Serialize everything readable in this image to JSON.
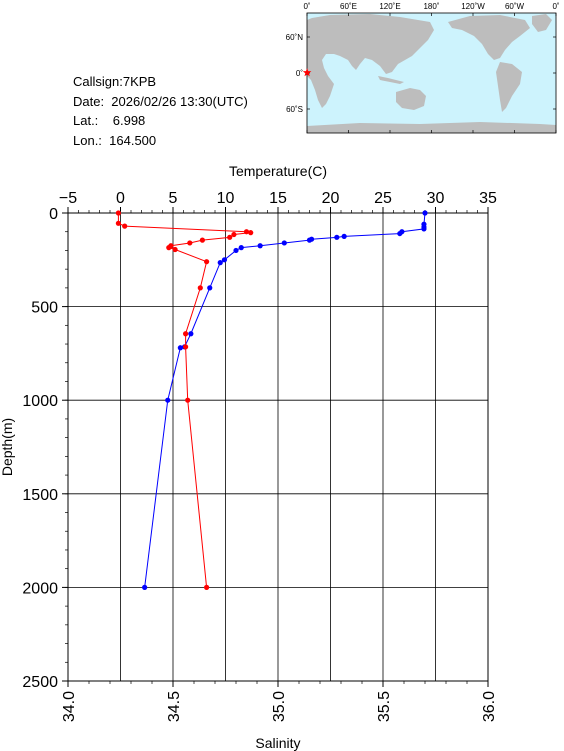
{
  "info": {
    "callsign": "Callsign:7KPB",
    "date": "Date:  2026/02/26 13:30(UTC)",
    "lat": "Lat.:    6.998",
    "lon": "Lon.:  164.500"
  },
  "map": {
    "top_lon_labels": [
      "0˚",
      "60˚E",
      "120˚E",
      "180˚",
      "120˚W",
      "60˚W",
      "0˚"
    ],
    "lat_labels": [
      "60˚N",
      "0˚",
      "60˚S"
    ],
    "ocean_color": "#cdf3fd",
    "land_color": "#bdbdbd",
    "marker_color": "#ff0000",
    "marker": "star-icon"
  },
  "chart_data": {
    "type": "line",
    "ylabel": "Depth(m)",
    "y_ticks": [
      "0",
      "500",
      "1000",
      "1500",
      "2000",
      "2500"
    ],
    "ylim": [
      2500,
      0
    ],
    "grid": true,
    "top_axis": {
      "label": "Temperature(C)",
      "range": [
        -5,
        35
      ],
      "ticks": [
        "−5",
        "0",
        "5",
        "10",
        "15",
        "20",
        "25",
        "30",
        "35"
      ]
    },
    "bottom_axis": {
      "label": "Salinity",
      "range": [
        34.0,
        36.0
      ],
      "ticks": [
        "34.0",
        "34.5",
        "35.0",
        "35.5",
        "36.0"
      ]
    },
    "series": [
      {
        "axis": "top",
        "color": "#0000ff",
        "points": [
          {
            "x": 29.0,
            "y": 0
          },
          {
            "x": 28.9,
            "y": 60
          },
          {
            "x": 28.9,
            "y": 75
          },
          {
            "x": 28.9,
            "y": 85
          },
          {
            "x": 26.8,
            "y": 100
          },
          {
            "x": 26.6,
            "y": 110
          },
          {
            "x": 21.3,
            "y": 125
          },
          {
            "x": 20.6,
            "y": 130
          },
          {
            "x": 18.2,
            "y": 140
          },
          {
            "x": 18.0,
            "y": 145
          },
          {
            "x": 15.6,
            "y": 160
          },
          {
            "x": 13.3,
            "y": 175
          },
          {
            "x": 11.5,
            "y": 185
          },
          {
            "x": 11.0,
            "y": 200
          },
          {
            "x": 9.9,
            "y": 250
          },
          {
            "x": 9.5,
            "y": 265
          },
          {
            "x": 8.5,
            "y": 400
          },
          {
            "x": 6.7,
            "y": 645
          },
          {
            "x": 6.1,
            "y": 715
          },
          {
            "x": 5.7,
            "y": 720
          },
          {
            "x": 4.5,
            "y": 1000
          },
          {
            "x": 2.3,
            "y": 2000
          }
        ]
      },
      {
        "axis": "bottom",
        "color": "#ff0000",
        "points": [
          {
            "x": 34.24,
            "y": 0
          },
          {
            "x": 34.24,
            "y": 55
          },
          {
            "x": 34.27,
            "y": 70
          },
          {
            "x": 34.85,
            "y": 100
          },
          {
            "x": 34.87,
            "y": 105
          },
          {
            "x": 34.79,
            "y": 115
          },
          {
            "x": 34.77,
            "y": 130
          },
          {
            "x": 34.64,
            "y": 145
          },
          {
            "x": 34.58,
            "y": 160
          },
          {
            "x": 34.49,
            "y": 175
          },
          {
            "x": 34.48,
            "y": 185
          },
          {
            "x": 34.51,
            "y": 195
          },
          {
            "x": 34.66,
            "y": 260
          },
          {
            "x": 34.63,
            "y": 400
          },
          {
            "x": 34.56,
            "y": 645
          },
          {
            "x": 34.56,
            "y": 715
          },
          {
            "x": 34.57,
            "y": 1000
          },
          {
            "x": 34.66,
            "y": 2000
          }
        ]
      }
    ]
  }
}
